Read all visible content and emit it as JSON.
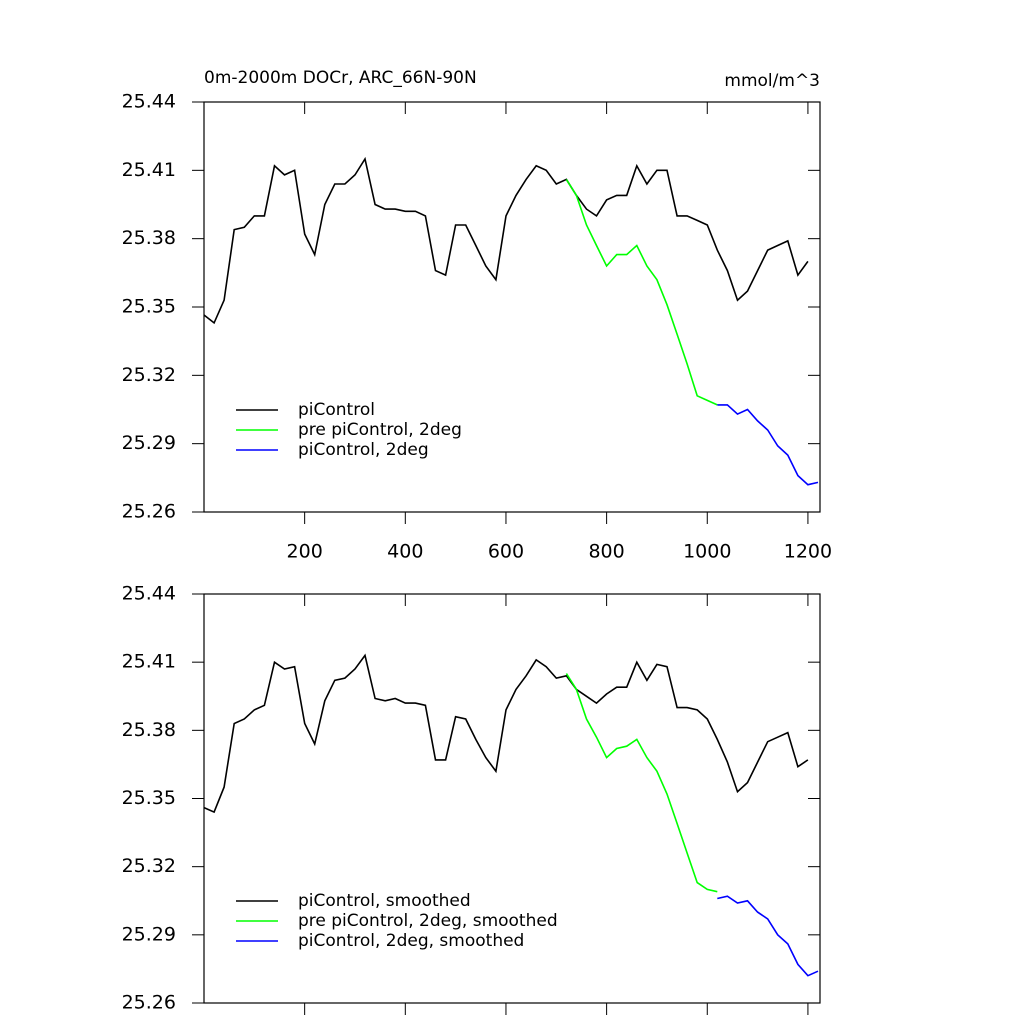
{
  "chart_data": [
    {
      "type": "line",
      "title": "0m-2000m DOCr, ARC_66N-90N",
      "units": "mmol/m^3",
      "xlim": [
        0,
        1224
      ],
      "xticks": [
        200,
        400,
        600,
        800,
        1000,
        1200
      ],
      "xtick_labels": true,
      "ylim": [
        25.26,
        25.44
      ],
      "yticks": [
        25.26,
        25.29,
        25.32,
        25.35,
        25.38,
        25.41,
        25.44
      ],
      "legend": "lower left",
      "series": [
        {
          "name": "piControl",
          "color": "#000000",
          "x": [
            0,
            20,
            40,
            60,
            80,
            100,
            120,
            140,
            160,
            180,
            200,
            220,
            240,
            260,
            280,
            300,
            320,
            340,
            360,
            380,
            400,
            420,
            440,
            460,
            480,
            500,
            520,
            540,
            560,
            580,
            600,
            620,
            640,
            660,
            680,
            700,
            720,
            740,
            760,
            780,
            800,
            820,
            840,
            860,
            880,
            900,
            920,
            940,
            960,
            980,
            1000,
            1020,
            1040,
            1060,
            1080,
            1100,
            1120,
            1140,
            1160,
            1180,
            1200
          ],
          "values": [
            25.3465,
            25.343,
            25.353,
            25.384,
            25.385,
            25.39,
            25.39,
            25.412,
            25.408,
            25.41,
            25.382,
            25.373,
            25.395,
            25.404,
            25.404,
            25.408,
            25.415,
            25.395,
            25.393,
            25.393,
            25.392,
            25.392,
            25.39,
            25.366,
            25.364,
            25.386,
            25.386,
            25.377,
            25.368,
            25.362,
            25.39,
            25.399,
            25.406,
            25.412,
            25.41,
            25.404,
            25.406,
            25.399,
            25.393,
            25.39,
            25.397,
            25.399,
            25.399,
            25.412,
            25.404,
            25.41,
            25.41,
            25.39,
            25.39,
            25.388,
            25.386,
            25.375,
            25.366,
            25.353,
            25.357,
            25.366,
            25.375,
            25.377,
            25.379,
            25.364,
            25.37
          ]
        },
        {
          "name": "pre piControl, 2deg",
          "color": "#00ff00",
          "x": [
            720,
            740,
            760,
            780,
            800,
            820,
            840,
            860,
            880,
            900,
            920,
            940,
            960,
            980,
            1000,
            1020
          ],
          "values": [
            25.406,
            25.399,
            25.386,
            25.377,
            25.368,
            25.373,
            25.373,
            25.377,
            25.368,
            25.362,
            25.351,
            25.338,
            25.325,
            25.311,
            25.309,
            25.307
          ]
        },
        {
          "name": "piControl, 2deg",
          "color": "#0000ff",
          "x": [
            1020,
            1040,
            1060,
            1080,
            1100,
            1120,
            1140,
            1160,
            1180,
            1200,
            1220
          ],
          "values": [
            25.307,
            25.307,
            25.303,
            25.305,
            25.3,
            25.296,
            25.289,
            25.285,
            25.276,
            25.272,
            25.273
          ]
        }
      ]
    },
    {
      "type": "line",
      "xlim": [
        0,
        1224
      ],
      "xticks": [
        200,
        400,
        600,
        800,
        1000,
        1200
      ],
      "xtick_labels": false,
      "ylim": [
        25.26,
        25.44
      ],
      "yticks": [
        25.26,
        25.29,
        25.32,
        25.35,
        25.38,
        25.41,
        25.44
      ],
      "legend": "lower left",
      "series": [
        {
          "name": "piControl, smoothed",
          "color": "#000000",
          "x": [
            0,
            20,
            40,
            60,
            80,
            100,
            120,
            140,
            160,
            180,
            200,
            220,
            240,
            260,
            280,
            300,
            320,
            340,
            360,
            380,
            400,
            420,
            440,
            460,
            480,
            500,
            520,
            540,
            560,
            580,
            600,
            620,
            640,
            660,
            680,
            700,
            720,
            740,
            760,
            780,
            800,
            820,
            840,
            860,
            880,
            900,
            920,
            940,
            960,
            980,
            1000,
            1020,
            1040,
            1060,
            1080,
            1100,
            1120,
            1140,
            1160,
            1180,
            1200
          ],
          "values": [
            25.346,
            25.344,
            25.355,
            25.383,
            25.385,
            25.389,
            25.391,
            25.41,
            25.407,
            25.408,
            25.383,
            25.374,
            25.393,
            25.402,
            25.403,
            25.407,
            25.413,
            25.394,
            25.393,
            25.394,
            25.392,
            25.392,
            25.391,
            25.367,
            25.367,
            25.386,
            25.385,
            25.376,
            25.368,
            25.362,
            25.389,
            25.398,
            25.404,
            25.411,
            25.408,
            25.403,
            25.404,
            25.398,
            25.395,
            25.392,
            25.396,
            25.399,
            25.399,
            25.41,
            25.402,
            25.409,
            25.408,
            25.39,
            25.39,
            25.389,
            25.385,
            25.376,
            25.366,
            25.353,
            25.357,
            25.366,
            25.375,
            25.377,
            25.379,
            25.364,
            25.367
          ]
        },
        {
          "name": "pre piControl, 2deg, smoothed",
          "color": "#00ff00",
          "x": [
            720,
            740,
            760,
            780,
            800,
            820,
            840,
            860,
            880,
            900,
            920,
            940,
            960,
            980,
            1000,
            1020
          ],
          "values": [
            25.405,
            25.398,
            25.385,
            25.377,
            25.368,
            25.372,
            25.373,
            25.376,
            25.368,
            25.362,
            25.352,
            25.339,
            25.326,
            25.313,
            25.31,
            25.309
          ]
        },
        {
          "name": "piControl, 2deg, smoothed",
          "color": "#0000ff",
          "x": [
            1020,
            1040,
            1060,
            1080,
            1100,
            1120,
            1140,
            1160,
            1180,
            1200,
            1220
          ],
          "values": [
            25.306,
            25.307,
            25.304,
            25.305,
            25.3,
            25.297,
            25.29,
            25.286,
            25.277,
            25.272,
            25.274
          ]
        }
      ]
    }
  ]
}
